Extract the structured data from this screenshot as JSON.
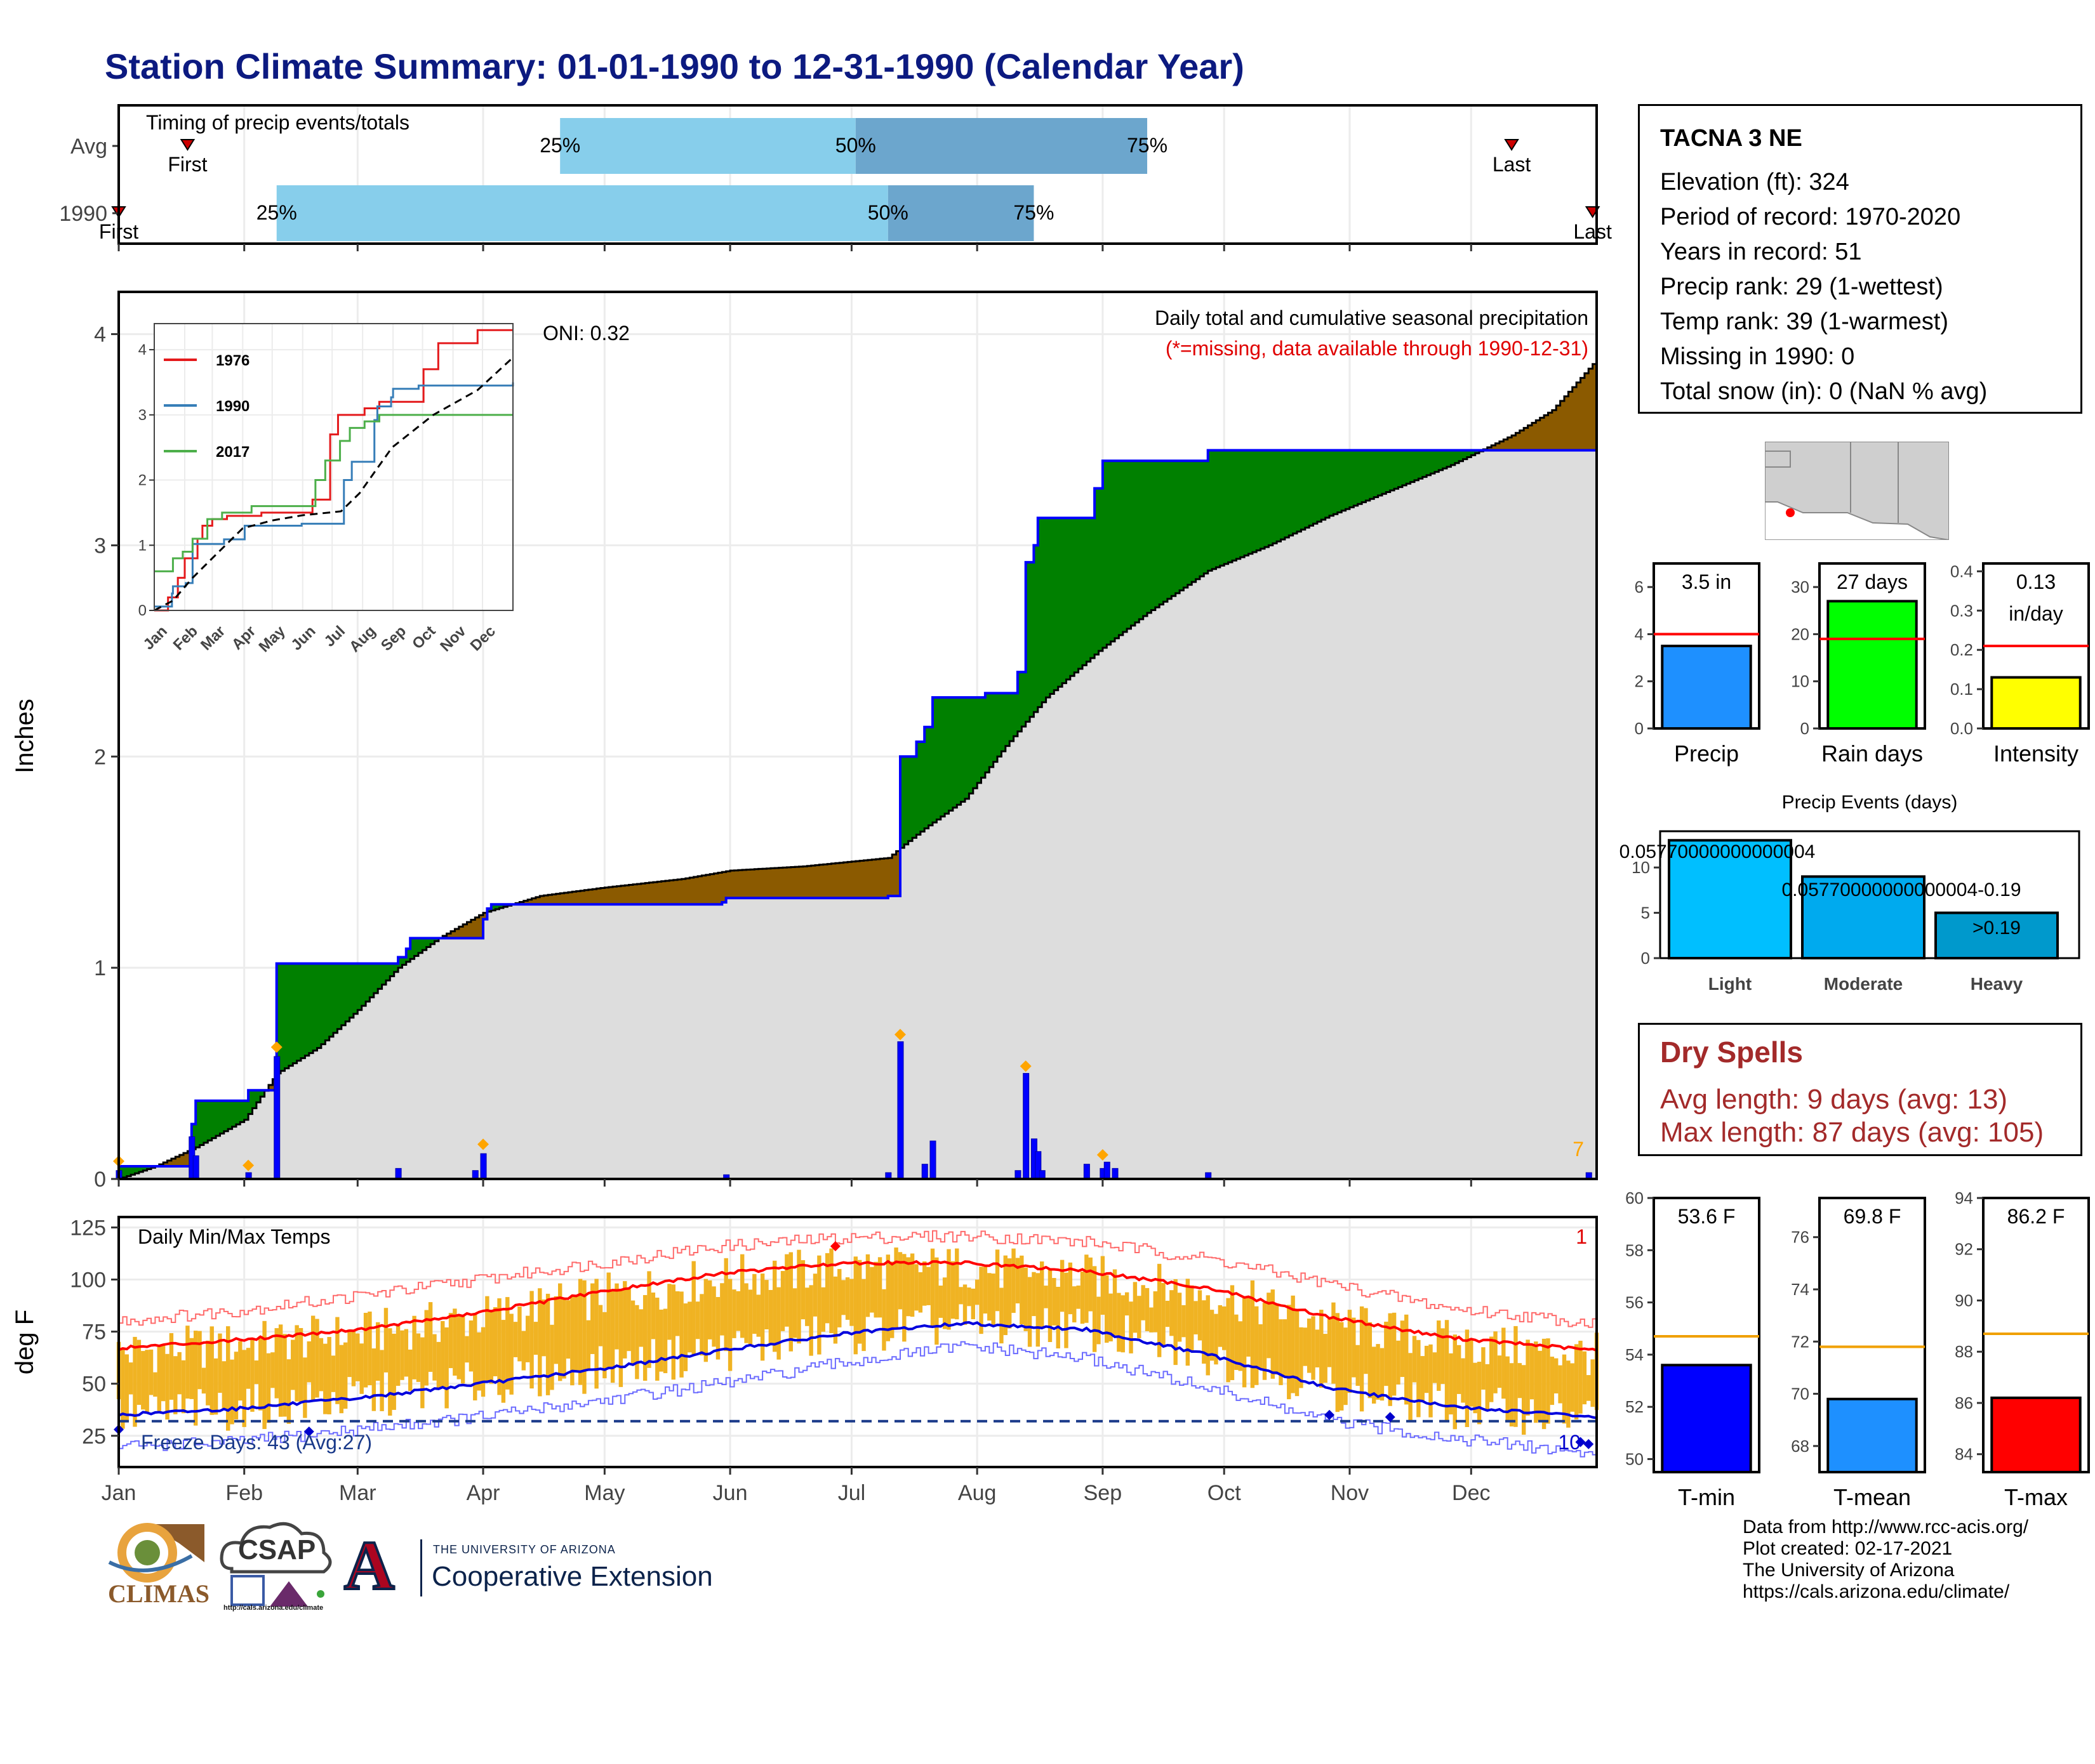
{
  "page": {
    "title": "Station Climate Summary: 01-01-1990 to 12-31-1990 (Calendar Year)"
  },
  "station": {
    "name": "TACNA 3 NE",
    "lines": [
      "Elevation (ft): 324",
      "Period of record: 1970-2020",
      "Years in record: 51",
      "Precip rank: 29 (1-wettest)",
      "Temp rank: 39 (1-warmest)",
      "Missing in 1990: 0",
      "Total snow (in): 0 (NaN % avg)"
    ]
  },
  "dry_spells": {
    "title": "Dry Spells",
    "avg_line": "Avg length: 9 days (avg: 13)",
    "max_line": "Max length: 87 days (avg: 105)"
  },
  "credits": [
    "Data from http://www.rcc-acis.org/",
    "Plot created: 02-17-2021",
    "The University of Arizona",
    "https://cals.arizona.edu/climate/"
  ],
  "logos": {
    "climas": "CLIMAS",
    "csap": "CSAP",
    "csap_url": "http://cals.arizona.edu/climate",
    "ua_line1": "THE UNIVERSITY OF ARIZONA",
    "ua_line2": "Cooperative Extension",
    "ua_letter": "A"
  },
  "colors": {
    "accent_title": "#0c1a80",
    "green_surplus": "#008000",
    "brown_deficit": "#8b5a00",
    "avg_fill": "#dddddd",
    "obs_line": "#0000ff",
    "temp_bar": "#f0b323",
    "max_line": "#ff0000",
    "min_line": "#0000dd",
    "dry_text": "#a32a2a"
  },
  "chart_data": [
    {
      "id": "timing",
      "type": "bar",
      "title": "Timing of precip events/totals",
      "categories": [
        "Avg",
        "1990"
      ],
      "rows": [
        {
          "name": "Avg",
          "first_doy": 18,
          "last_doy": 345,
          "q25_doy": 110,
          "q50_doy": 183,
          "q75_doy": 255,
          "first_label": "First",
          "last_label": "Last"
        },
        {
          "name": "1990",
          "first_doy": 1,
          "last_doy": 365,
          "q25_doy": 40,
          "q50_doy": 191,
          "q75_doy": 227,
          "first_label": "First",
          "last_label": "Last"
        }
      ],
      "quantile_labels": [
        "25%",
        "50%",
        "75%"
      ],
      "xlim": [
        1,
        366
      ]
    },
    {
      "id": "precip_main",
      "type": "area",
      "title": "Daily total and cumulative seasonal precipitation",
      "subtitle": "(*=missing, data available through 1990-12-31)",
      "annotation": "ONI: 0.32",
      "corner_count": "7",
      "ylabel": "Inches",
      "ylim": [
        0,
        4.2
      ],
      "yticks": [
        0,
        1,
        2,
        3,
        4
      ],
      "xlim": [
        1,
        366
      ],
      "months": [
        "Jan",
        "Feb",
        "Mar",
        "Apr",
        "May",
        "Jun",
        "Jul",
        "Aug",
        "Sep",
        "Oct",
        "Nov",
        "Dec"
      ],
      "avg_cumulative": [
        [
          1,
          0.0
        ],
        [
          10,
          0.06
        ],
        [
          20,
          0.15
        ],
        [
          32,
          0.28
        ],
        [
          40,
          0.5
        ],
        [
          50,
          0.62
        ],
        [
          60,
          0.8
        ],
        [
          70,
          1.0
        ],
        [
          80,
          1.14
        ],
        [
          91,
          1.26
        ],
        [
          105,
          1.34
        ],
        [
          121,
          1.38
        ],
        [
          140,
          1.42
        ],
        [
          152,
          1.46
        ],
        [
          170,
          1.48
        ],
        [
          191,
          1.52
        ],
        [
          196,
          1.6
        ],
        [
          200,
          1.66
        ],
        [
          210,
          1.8
        ],
        [
          220,
          2.05
        ],
        [
          230,
          2.28
        ],
        [
          243,
          2.5
        ],
        [
          255,
          2.68
        ],
        [
          270,
          2.88
        ],
        [
          285,
          3.0
        ],
        [
          300,
          3.14
        ],
        [
          315,
          3.26
        ],
        [
          330,
          3.38
        ],
        [
          345,
          3.52
        ],
        [
          355,
          3.64
        ],
        [
          366,
          3.88
        ]
      ],
      "obs_cumulative": [
        [
          1,
          0.06
        ],
        [
          19,
          0.06
        ],
        [
          19,
          0.26
        ],
        [
          20,
          0.26
        ],
        [
          20,
          0.37
        ],
        [
          33,
          0.37
        ],
        [
          33,
          0.42
        ],
        [
          40,
          0.42
        ],
        [
          40,
          1.02
        ],
        [
          68,
          1.02
        ],
        [
          70,
          1.05
        ],
        [
          72,
          1.09
        ],
        [
          73,
          1.14
        ],
        [
          91,
          1.23
        ],
        [
          92,
          1.28
        ],
        [
          93,
          1.3
        ],
        [
          150,
          1.31
        ],
        [
          151,
          1.33
        ],
        [
          191,
          1.33
        ],
        [
          191,
          1.34
        ],
        [
          194,
          1.34
        ],
        [
          194,
          2.0
        ],
        [
          198,
          2.0
        ],
        [
          198,
          2.07
        ],
        [
          200,
          2.07
        ],
        [
          200,
          2.14
        ],
        [
          202,
          2.14
        ],
        [
          202,
          2.28
        ],
        [
          215,
          2.28
        ],
        [
          215,
          2.3
        ],
        [
          223,
          2.3
        ],
        [
          223,
          2.4
        ],
        [
          225,
          2.4
        ],
        [
          225,
          2.92
        ],
        [
          227,
          2.92
        ],
        [
          227,
          3.0
        ],
        [
          228,
          3.0
        ],
        [
          228,
          3.13
        ],
        [
          242,
          3.13
        ],
        [
          242,
          3.27
        ],
        [
          244,
          3.27
        ],
        [
          244,
          3.4
        ],
        [
          270,
          3.4
        ],
        [
          270,
          3.45
        ],
        [
          366,
          3.45
        ],
        [
          366,
          3.5
        ]
      ],
      "daily_precip": [
        [
          1,
          0.04
        ],
        [
          19,
          0.2
        ],
        [
          20,
          0.11
        ],
        [
          33,
          0.03
        ],
        [
          40,
          0.58
        ],
        [
          70,
          0.05
        ],
        [
          89,
          0.04
        ],
        [
          91,
          0.12
        ],
        [
          151,
          0.02
        ],
        [
          191,
          0.03
        ],
        [
          194,
          0.65
        ],
        [
          200,
          0.07
        ],
        [
          202,
          0.18
        ],
        [
          223,
          0.04
        ],
        [
          225,
          0.5
        ],
        [
          227,
          0.19
        ],
        [
          228,
          0.13
        ],
        [
          229,
          0.04
        ],
        [
          240,
          0.07
        ],
        [
          244,
          0.05
        ],
        [
          245,
          0.08
        ],
        [
          247,
          0.05
        ],
        [
          270,
          0.03
        ],
        [
          364,
          0.03
        ]
      ],
      "flagged_days": [
        [
          1,
          0.06
        ],
        [
          33,
          0.04
        ],
        [
          40,
          0.6
        ],
        [
          91,
          0.14
        ],
        [
          194,
          0.66
        ],
        [
          225,
          0.51
        ],
        [
          244,
          0.09
        ]
      ]
    },
    {
      "id": "inset",
      "type": "line",
      "ylim": [
        0,
        4.4
      ],
      "yticks": [
        0,
        1,
        2,
        3,
        4
      ],
      "months": [
        "Jan",
        "Feb",
        "Mar",
        "Apr",
        "May",
        "Jun",
        "Jul",
        "Aug",
        "Sep",
        "Oct",
        "Nov",
        "Dec"
      ],
      "series": [
        {
          "name": "1976",
          "color": "#e41a1c",
          "values": [
            [
              1,
              0
            ],
            [
              15,
              0.2
            ],
            [
              25,
              0.5
            ],
            [
              32,
              0.8
            ],
            [
              45,
              1.1
            ],
            [
              50,
              1.3
            ],
            [
              60,
              1.4
            ],
            [
              75,
              1.45
            ],
            [
              110,
              1.5
            ],
            [
              150,
              1.5
            ],
            [
              162,
              1.7
            ],
            [
              180,
              2.7
            ],
            [
              188,
              3.0
            ],
            [
              200,
              3.0
            ],
            [
              215,
              3.1
            ],
            [
              230,
              3.2
            ],
            [
              245,
              3.2
            ],
            [
              260,
              3.2
            ],
            [
              275,
              3.7
            ],
            [
              290,
              4.1
            ],
            [
              310,
              4.1
            ],
            [
              330,
              4.3
            ],
            [
              366,
              4.3
            ]
          ]
        },
        {
          "name": "1990",
          "color": "#377eb8",
          "values": [
            [
              1,
              0.06
            ],
            [
              19,
              0.26
            ],
            [
              20,
              0.37
            ],
            [
              33,
              0.42
            ],
            [
              40,
              1.02
            ],
            [
              72,
              1.09
            ],
            [
              93,
              1.3
            ],
            [
              151,
              1.33
            ],
            [
              194,
              2.0
            ],
            [
              202,
              2.28
            ],
            [
              225,
              2.92
            ],
            [
              228,
              3.13
            ],
            [
              242,
              3.27
            ],
            [
              244,
              3.4
            ],
            [
              270,
              3.45
            ],
            [
              366,
              3.5
            ]
          ]
        },
        {
          "name": "2017",
          "color": "#4daf4a",
          "values": [
            [
              1,
              0.6
            ],
            [
              10,
              0.6
            ],
            [
              20,
              0.8
            ],
            [
              30,
              0.9
            ],
            [
              40,
              1.1
            ],
            [
              55,
              1.4
            ],
            [
              70,
              1.5
            ],
            [
              100,
              1.6
            ],
            [
              150,
              1.6
            ],
            [
              165,
              2.0
            ],
            [
              175,
              2.3
            ],
            [
              190,
              2.6
            ],
            [
              200,
              2.8
            ],
            [
              215,
              2.9
            ],
            [
              230,
              3.0
            ],
            [
              366,
              3.0
            ]
          ]
        }
      ],
      "avg_line": [
        [
          1,
          0
        ],
        [
          20,
          0.15
        ],
        [
          40,
          0.5
        ],
        [
          60,
          0.8
        ],
        [
          91,
          1.26
        ],
        [
          121,
          1.38
        ],
        [
          152,
          1.46
        ],
        [
          191,
          1.52
        ],
        [
          210,
          1.8
        ],
        [
          243,
          2.5
        ],
        [
          285,
          3.0
        ],
        [
          330,
          3.38
        ],
        [
          366,
          3.88
        ]
      ]
    },
    {
      "id": "temps",
      "type": "bar",
      "title": "Daily Min/Max Temps",
      "ylabel": "deg F",
      "ylim": [
        10,
        130
      ],
      "yticks": [
        25,
        50,
        75,
        100,
        125
      ],
      "freeze_label": "Freeze Days: 43 (Avg:27)",
      "freeze_threshold": 32,
      "corner_top": "1",
      "corner_bottom": "10",
      "months": [
        "Jan",
        "Feb",
        "Mar",
        "Apr",
        "May",
        "Jun",
        "Jul",
        "Aug",
        "Sep",
        "Oct",
        "Nov",
        "Dec"
      ],
      "avg_max_anchors": [
        [
          1,
          67
        ],
        [
          30,
          71
        ],
        [
          60,
          76
        ],
        [
          90,
          84
        ],
        [
          120,
          94
        ],
        [
          150,
          103
        ],
        [
          180,
          108
        ],
        [
          210,
          108
        ],
        [
          240,
          104
        ],
        [
          270,
          96
        ],
        [
          300,
          82
        ],
        [
          330,
          72
        ],
        [
          366,
          66
        ]
      ],
      "avg_min_anchors": [
        [
          1,
          35
        ],
        [
          30,
          38
        ],
        [
          60,
          43
        ],
        [
          90,
          50
        ],
        [
          120,
          57
        ],
        [
          150,
          66
        ],
        [
          180,
          74
        ],
        [
          210,
          79
        ],
        [
          240,
          76
        ],
        [
          270,
          64
        ],
        [
          300,
          48
        ],
        [
          330,
          39
        ],
        [
          366,
          34
        ]
      ],
      "rec_max_anchors": [
        [
          1,
          80
        ],
        [
          30,
          85
        ],
        [
          60,
          92
        ],
        [
          90,
          100
        ],
        [
          120,
          108
        ],
        [
          150,
          116
        ],
        [
          180,
          120
        ],
        [
          210,
          121
        ],
        [
          240,
          118
        ],
        [
          270,
          110
        ],
        [
          300,
          98
        ],
        [
          330,
          86
        ],
        [
          366,
          79
        ]
      ],
      "rec_min_anchors": [
        [
          1,
          20
        ],
        [
          30,
          22
        ],
        [
          60,
          28
        ],
        [
          90,
          34
        ],
        [
          120,
          42
        ],
        [
          150,
          50
        ],
        [
          180,
          60
        ],
        [
          210,
          68
        ],
        [
          240,
          62
        ],
        [
          270,
          48
        ],
        [
          300,
          32
        ],
        [
          330,
          24
        ],
        [
          366,
          16
        ]
      ]
    },
    {
      "id": "bars_precip",
      "type": "bar",
      "categories": [
        "Precip",
        "Rain days",
        "Intensity"
      ],
      "panels": [
        {
          "category": "Precip",
          "value": 3.5,
          "avg": 4.0,
          "label": "3.5 in",
          "ylim": [
            0,
            7
          ],
          "yticks": [
            0,
            2,
            4,
            6
          ],
          "color": "#1e90ff"
        },
        {
          "category": "Rain days",
          "value": 27,
          "avg": 19,
          "label": "27 days",
          "ylim": [
            0,
            35
          ],
          "yticks": [
            0,
            10,
            20,
            30
          ],
          "color": "#00ff00"
        },
        {
          "category": "Intensity",
          "value": 0.13,
          "avg": 0.21,
          "label": "0.13",
          "label2": "in/day",
          "ylim": [
            0,
            0.42
          ],
          "yticks": [
            0.0,
            0.1,
            0.2,
            0.3,
            0.4
          ],
          "color": "#ffff00"
        }
      ]
    },
    {
      "id": "precip_events",
      "type": "bar",
      "title": "Precip Events (days)",
      "categories": [
        "Light",
        "Moderate",
        "Heavy"
      ],
      "values": [
        13,
        9,
        5
      ],
      "labels": [
        "0.05770000000000004",
        "0.05770000000000004-0.19",
        ">0.19"
      ],
      "ylim": [
        0,
        14
      ],
      "yticks": [
        0,
        5,
        10
      ],
      "colors": [
        "#00bfff",
        "#00aaee",
        "#0099cc"
      ]
    },
    {
      "id": "bars_temp",
      "type": "bar",
      "categories": [
        "T-min",
        "T-mean",
        "T-max"
      ],
      "panels": [
        {
          "category": "T-min",
          "value": 53.6,
          "avg": 54.7,
          "label": "53.6 F",
          "ylim": [
            49.5,
            60
          ],
          "yticks": [
            50,
            52,
            54,
            56,
            58,
            60
          ],
          "color": "#0000ff"
        },
        {
          "category": "T-mean",
          "value": 69.8,
          "avg": 71.8,
          "label": "69.8 F",
          "ylim": [
            67,
            77.5
          ],
          "yticks": [
            68,
            70,
            72,
            74,
            76
          ],
          "color": "#1e90ff"
        },
        {
          "category": "T-max",
          "value": 86.2,
          "avg": 88.7,
          "label": "86.2 F",
          "ylim": [
            83.3,
            94
          ],
          "yticks": [
            84,
            86,
            88,
            90,
            92,
            94
          ],
          "color": "#ff0000"
        }
      ]
    }
  ]
}
